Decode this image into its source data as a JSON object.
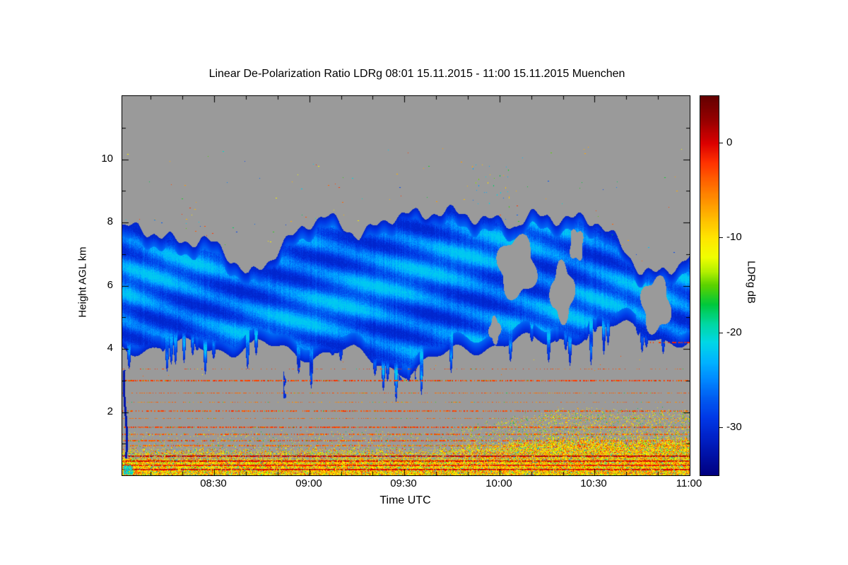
{
  "seed": 1337,
  "chart_data": {
    "type": "heatmap",
    "title": "Linear De-Polarization Ratio LDRg   08:01 15.11.2015 - 11:00 15.11.2015 Muenchen",
    "xlabel": "Time UTC",
    "ylabel": "Height AGL km",
    "colorbar_label": "LDRg dB",
    "legend": "none",
    "grid": false,
    "background_color": "#9a9a9a",
    "x_axis": {
      "start_minutes": 481,
      "end_minutes": 660,
      "minor_step_minutes": 10,
      "ticks": [
        {
          "minutes": 510,
          "label": "08:30"
        },
        {
          "minutes": 540,
          "label": "09:00"
        },
        {
          "minutes": 570,
          "label": "09:30"
        },
        {
          "minutes": 600,
          "label": "10:00"
        },
        {
          "minutes": 630,
          "label": "10:30"
        },
        {
          "minutes": 660,
          "label": "11:00"
        }
      ]
    },
    "y_axis": {
      "min_km": 0,
      "max_km": 12,
      "minor_step_km": 1,
      "ticks": [
        2,
        4,
        6,
        8,
        10
      ]
    },
    "value_axis": {
      "min_db": -35,
      "max_db": 5,
      "minor_step_db": 5,
      "ticks": [
        0,
        -10,
        -20,
        -30
      ]
    },
    "colormap": [
      [
        5,
        "#640000"
      ],
      [
        2.5,
        "#960000"
      ],
      [
        0,
        "#dc0000"
      ],
      [
        -2,
        "#ff3200"
      ],
      [
        -4,
        "#ff6400"
      ],
      [
        -6,
        "#ff9100"
      ],
      [
        -8,
        "#ffbe00"
      ],
      [
        -10,
        "#ffe600"
      ],
      [
        -12,
        "#f0ff00"
      ],
      [
        -13.5,
        "#b4f000"
      ],
      [
        -15,
        "#5ad200"
      ],
      [
        -17,
        "#00c83c"
      ],
      [
        -19,
        "#00d7a0"
      ],
      [
        -21,
        "#00d7e6"
      ],
      [
        -23,
        "#00b4ff"
      ],
      [
        -25,
        "#0087ff"
      ],
      [
        -27,
        "#005af0"
      ],
      [
        -29,
        "#0038e6"
      ],
      [
        -31,
        "#0022c8"
      ],
      [
        -33,
        "#0011a5"
      ],
      [
        -35,
        "#000080"
      ]
    ],
    "cloud_layer": {
      "description": "Mid-level ice cloud, LDR mostly -30 to -22 dB (blue with cyan fall-streaks)",
      "body_min_db": -30.6,
      "body_max_db": -21.8,
      "tops_km": [
        7.6,
        7.75,
        7.8,
        7.7,
        7.55,
        7.35,
        7.05,
        6.7,
        6.35,
        6.9,
        7.4,
        7.6,
        7.85,
        8.0,
        7.9,
        7.8,
        8.05,
        8.2,
        8.1,
        8.0,
        8.3,
        8.5,
        8.45,
        8.2,
        7.9,
        7.7,
        8.1,
        8.35,
        8.3,
        8.3,
        8.0,
        7.4,
        6.9,
        6.5,
        6.6,
        6.8,
        6.9
      ],
      "bases_km": [
        4.15,
        4.05,
        3.95,
        4.0,
        4.1,
        4.15,
        4.05,
        3.95,
        4.05,
        4.1,
        4.0,
        3.9,
        3.85,
        3.9,
        3.95,
        3.8,
        3.6,
        3.45,
        3.35,
        3.5,
        3.7,
        3.9,
        4.0,
        4.1,
        4.2,
        4.3,
        4.2,
        4.15,
        4.3,
        4.45,
        4.6,
        4.7,
        4.65,
        4.5,
        4.4,
        4.3,
        4.2
      ],
      "gaps": [
        {
          "t": 0.695,
          "h_km": 6.6,
          "rt": 0.033,
          "rh_km": 0.95
        },
        {
          "t": 0.775,
          "h_km": 5.8,
          "rt": 0.02,
          "rh_km": 0.9
        },
        {
          "t": 0.8,
          "h_km": 7.3,
          "rt": 0.012,
          "rh_km": 0.5
        },
        {
          "t": 0.94,
          "h_km": 5.4,
          "rt": 0.025,
          "rh_km": 0.85
        },
        {
          "t": 0.656,
          "h_km": 4.6,
          "rt": 0.01,
          "rh_km": 0.4
        }
      ]
    },
    "virga": [
      {
        "t": 0.284,
        "h1_km": 2.45,
        "h2_km": 3.3,
        "w": 4,
        "db": -30
      },
      {
        "t": 0.487,
        "h1_km": 3.0,
        "h2_km": 3.6,
        "w": 5,
        "db": -29
      },
      {
        "t": 0.515,
        "h1_km": 3.05,
        "h2_km": 3.5,
        "w": 3,
        "db": -30
      }
    ],
    "clutter_lines": [
      {
        "h_km": 3.02,
        "density": 0.6,
        "db": -2.5,
        "spread": 2,
        "th": 2
      },
      {
        "h_km": 2.62,
        "density": 0.45,
        "db": -4,
        "spread": 2,
        "th": 1
      },
      {
        "h_km": 2.33,
        "density": 0.3,
        "db": -5,
        "spread": 2.5,
        "th": 1
      },
      {
        "h_km": 2.05,
        "density": 0.5,
        "db": -3,
        "spread": 2,
        "th": 2
      },
      {
        "h_km": 1.8,
        "density": 0.35,
        "db": -4,
        "spread": 2,
        "th": 1
      },
      {
        "h_km": 1.55,
        "density": 0.65,
        "db": -2.5,
        "spread": 2,
        "th": 2
      },
      {
        "h_km": 1.32,
        "density": 0.5,
        "db": -3.5,
        "spread": 2.5,
        "th": 2
      },
      {
        "h_km": 1.12,
        "density": 0.55,
        "db": -3,
        "spread": 2,
        "th": 2
      },
      {
        "h_km": 0.95,
        "density": 0.6,
        "db": -4,
        "spread": 3,
        "th": 2
      },
      {
        "h_km": 3.38,
        "density": 0.18,
        "db": -3,
        "spread": 2,
        "th": 1
      },
      {
        "h_km": 4.22,
        "density": 0.45,
        "db": -2,
        "spread": 1.5,
        "th": 2,
        "tmin": 0.93
      }
    ],
    "surface_band": {
      "description": "Boundary-layer clutter, dense yellow/orange/red speckle below ~0.8 km, deeper after 09:50",
      "base_top_km": 0.7,
      "lines": [
        {
          "h_km": 0.63,
          "db": 1.5
        },
        {
          "h_km": 0.48,
          "db": 0.5
        },
        {
          "h_km": 0.34,
          "db": -0.5
        },
        {
          "h_km": 0.2,
          "db": 0.5
        }
      ]
    },
    "left_streak": {
      "h1_km": 0.55,
      "h2_km": 3.35,
      "db": -33
    },
    "corner_blob": {
      "h1_km": 0.04,
      "h2_km": 0.33,
      "db": -20.5
    },
    "speckles": {
      "scatter_count": 110,
      "cluster_count": 30,
      "midlevel_count": 15
    }
  }
}
